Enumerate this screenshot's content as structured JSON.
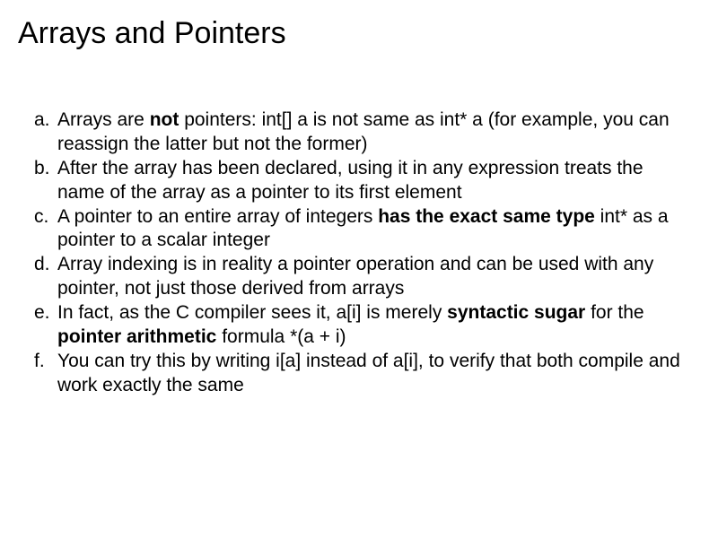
{
  "title": "Arrays and Pointers",
  "items": [
    {
      "marker": "a.",
      "segments": [
        {
          "text": "Arrays are ",
          "bold": false
        },
        {
          "text": "not",
          "bold": true
        },
        {
          "text": " pointers: int[] a is not same as int* a (for example, you can reassign the latter but not the former)",
          "bold": false
        }
      ]
    },
    {
      "marker": "b.",
      "segments": [
        {
          "text": "After the array has been declared, using it in any expression treats the name of the array as a pointer to its first element",
          "bold": false
        }
      ]
    },
    {
      "marker": "c.",
      "segments": [
        {
          "text": "A pointer to an entire array of integers ",
          "bold": false
        },
        {
          "text": "has the exact same type",
          "bold": true
        },
        {
          "text": " int* as a pointer to a scalar integer",
          "bold": false
        }
      ]
    },
    {
      "marker": "d.",
      "segments": [
        {
          "text": "Array indexing is in reality a pointer operation and can be used with any pointer, not just those derived from arrays",
          "bold": false
        }
      ]
    },
    {
      "marker": "e.",
      "segments": [
        {
          "text": "In fact, as the C compiler sees it, a[i] is merely ",
          "bold": false
        },
        {
          "text": "syntactic sugar",
          "bold": true
        },
        {
          "text": " for the ",
          "bold": false
        },
        {
          "text": "pointer arithmetic",
          "bold": true
        },
        {
          "text": " formula *(a + i)",
          "bold": false
        }
      ]
    },
    {
      "marker": "f.",
      "segments": [
        {
          "text": "You can try this by writing i[a] instead of a[i], to verify that both compile and work exactly the same",
          "bold": false
        }
      ]
    }
  ],
  "colors": {
    "background": "#ffffff",
    "text": "#000000"
  },
  "typography": {
    "title_fontsize": 34,
    "body_fontsize": 21,
    "font_family": "Arial"
  }
}
